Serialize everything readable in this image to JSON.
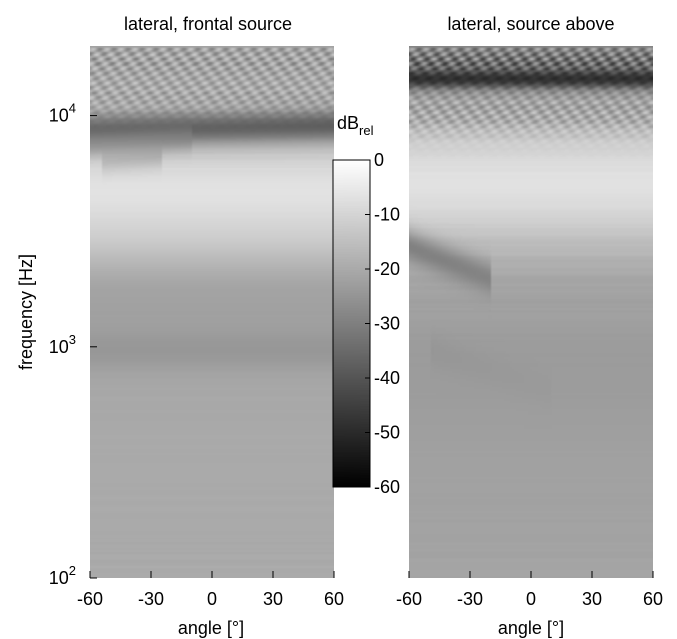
{
  "chart_data": [
    {
      "type": "heatmap",
      "title": "lateral, frontal source",
      "xlabel": "angle [°]",
      "ylabel": "frequency [Hz]",
      "x_ticks": [
        "-60",
        "-30",
        "0",
        "30",
        "60"
      ],
      "x_tick_values": [
        -60,
        -30,
        0,
        30,
        60
      ],
      "xlim": [
        -60,
        60
      ],
      "y_scale": "log",
      "ylim": [
        100,
        20000
      ],
      "y_ticks": [
        {
          "value": 100,
          "base": "10",
          "exp": "2"
        },
        {
          "value": 1000,
          "base": "10",
          "exp": "3"
        },
        {
          "value": 10000,
          "base": "10",
          "exp": "4"
        }
      ],
      "colormap": "gray",
      "features": [
        {
          "f": 18000,
          "type": "ripple",
          "dB": -22,
          "strength": 1.0
        },
        {
          "f": 12000,
          "type": "ripple",
          "dB": -20,
          "strength": 0.8
        },
        {
          "f": 8500,
          "type": "dark",
          "dB": -50,
          "width": 0.05,
          "x_from": -60,
          "x_to": 60,
          "curve": -0.06
        },
        {
          "f": 7500,
          "type": "dark",
          "dB": -40,
          "width": 0.04,
          "x_from": -60,
          "x_to": -10,
          "curve": -0.25
        },
        {
          "f": 6200,
          "type": "dark",
          "dB": -38,
          "width": 0.04,
          "x_from": -55,
          "x_to": -25,
          "curve": -0.3
        },
        {
          "f": 4300,
          "type": "bright",
          "dB": -2,
          "width": 0.18
        },
        {
          "f": 3000,
          "type": "bright",
          "dB": -4,
          "width": 0.14
        },
        {
          "f": 1300,
          "type": "mid",
          "dB": -24,
          "width": 0.25
        },
        {
          "f": 950,
          "type": "dark",
          "dB": -30,
          "width": 0.06,
          "x_from": -60,
          "x_to": 60,
          "curve": 0.0
        },
        {
          "f": 300,
          "type": "mid",
          "dB": -20,
          "width": 0.5
        }
      ]
    },
    {
      "type": "heatmap",
      "title": "lateral, source above",
      "xlabel": "angle [°]",
      "ylabel": "",
      "x_ticks": [
        "-60",
        "-30",
        "0",
        "30",
        "60"
      ],
      "x_tick_values": [
        -60,
        -30,
        0,
        30,
        60
      ],
      "xlim": [
        -60,
        60
      ],
      "y_scale": "log",
      "ylim": [
        100,
        20000
      ],
      "colormap": "gray",
      "features": [
        {
          "f": 17000,
          "type": "ripple",
          "dB": -42,
          "strength": 1.6
        },
        {
          "f": 14500,
          "type": "dark",
          "dB": -55,
          "width": 0.03,
          "x_from": -60,
          "x_to": 60,
          "curve": 0.0
        },
        {
          "f": 10000,
          "type": "ripple",
          "dB": -30,
          "strength": 1.2
        },
        {
          "f": 5000,
          "type": "bright",
          "dB": -4,
          "width": 0.2
        },
        {
          "f": 2700,
          "type": "dark",
          "dB": -34,
          "width": 0.05,
          "x_from": -60,
          "x_to": -20,
          "curve": 1.2
        },
        {
          "f": 1000,
          "type": "dark",
          "dB": -30,
          "width": 0.05,
          "x_from": -50,
          "x_to": 10,
          "curve": 1.0
        },
        {
          "f": 650,
          "type": "mid",
          "dB": -26,
          "width": 0.3
        },
        {
          "f": 250,
          "type": "mid",
          "dB": -22,
          "width": 0.5
        }
      ]
    }
  ],
  "colorbar": {
    "label_main": "dB",
    "label_sub": "rel",
    "range": [
      -60,
      0
    ],
    "ticks": [
      "0",
      "-10",
      "-20",
      "-30",
      "-40",
      "-50",
      "-60"
    ],
    "tick_values": [
      0,
      -10,
      -20,
      -30,
      -40,
      -50,
      -60
    ]
  }
}
